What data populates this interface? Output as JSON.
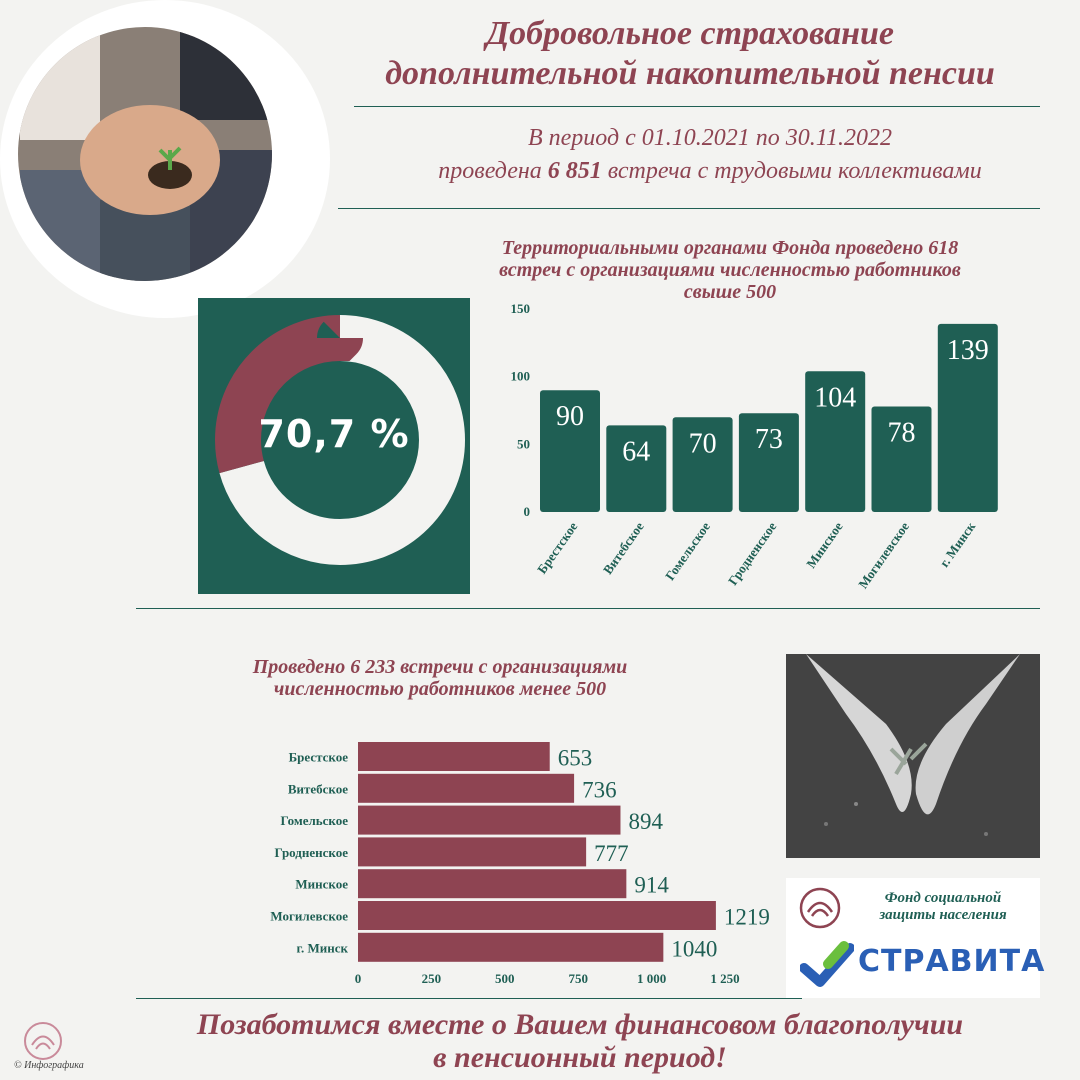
{
  "header": {
    "title_line1": "Добровольное страхование",
    "title_line2": "дополнительной накопительной пенсии",
    "period_line1": "В период с 01.10.2021 по 30.11.2022",
    "period_prefix": "проведена ",
    "period_number": "6  851",
    "period_suffix": " встреча с трудовыми коллективами"
  },
  "section_large": {
    "heading_line1": "Территориальными органами Фонда проведено 618",
    "heading_line2": "встреч с организациями численностью работников",
    "heading_line3": "свыше 500",
    "donut_label": "70,7 %"
  },
  "section_small": {
    "heading_line1": "Проведено 6 233 встречи с организациями",
    "heading_line2": "численностью работников менее 500"
  },
  "footer": {
    "line1": "Позаботимся вместе о Вашем финансовом благополучии",
    "line2": "в пенсионный период!",
    "copyright": "Инфографика"
  },
  "logos": {
    "fund_line1": "Фонд социальной",
    "fund_line2": "защиты населения",
    "stravita": "СТРАВИТА"
  },
  "colors": {
    "green": "#1f5f54",
    "maroon": "#8e4452",
    "background": "#f3f3f1"
  },
  "chart_data": [
    {
      "type": "pie",
      "values": [
        70.7,
        29.3
      ],
      "labels": [
        "70,7 %",
        ""
      ],
      "colors": [
        "#f3f3f1",
        "#8e4452"
      ]
    },
    {
      "type": "bar",
      "categories": [
        "Брестское",
        "Витебское",
        "Гомельское",
        "Гродненское",
        "Минское",
        "Могилевское",
        "г. Минск"
      ],
      "values": [
        90,
        64,
        70,
        73,
        104,
        78,
        139
      ],
      "yticks": [
        "0",
        "50",
        "100",
        "150"
      ],
      "ylim": [
        0,
        150
      ],
      "grid": false
    },
    {
      "type": "bar",
      "orientation": "horizontal",
      "categories": [
        "Брестское",
        "Витебское",
        "Гомельское",
        "Гродненское",
        "Минское",
        "Могилевское",
        "г. Минск"
      ],
      "values": [
        653,
        736,
        894,
        777,
        914,
        1219,
        1040
      ],
      "xticks": [
        "0",
        "250",
        "500",
        "750",
        "1 000",
        "1 250"
      ],
      "xlim": [
        0,
        1250
      ],
      "grid": false
    }
  ]
}
